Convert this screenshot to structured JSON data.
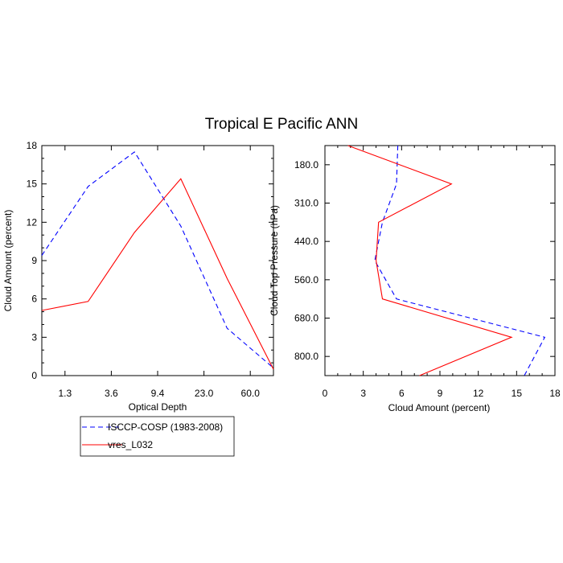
{
  "title": "Tropical E Pacific ANN",
  "colors": {
    "obs": "#0000ff",
    "model": "#ff0000",
    "axis": "#000000"
  },
  "legend": {
    "entries": [
      {
        "label": "ISCCP-COSP (1983-2008)",
        "color": "#0000ff",
        "dash": "dashed"
      },
      {
        "label": "vres_L032",
        "color": "#ff0000",
        "dash": "solid"
      }
    ]
  },
  "chart_data": [
    {
      "type": "line",
      "xlabel": "Optical Depth",
      "ylabel": "Cloud Amount (percent)",
      "x_tick_labels": [
        "1.3",
        "3.6",
        "9.4",
        "23.0",
        "60.0"
      ],
      "x_tick_index": [
        0.5,
        1.5,
        2.5,
        3.5,
        4.5
      ],
      "xlim_index": [
        0,
        5
      ],
      "ylim": [
        0,
        18
      ],
      "y_ticks": [
        0,
        3,
        6,
        9,
        12,
        15,
        18
      ],
      "series": [
        {
          "name": "ISCCP-COSP (1983-2008)",
          "x_index": [
            0,
            1,
            2,
            3,
            4,
            5
          ],
          "values": [
            9.4,
            14.8,
            17.5,
            11.7,
            3.7,
            0.6
          ]
        },
        {
          "name": "vres_L032",
          "x_index": [
            0,
            1,
            2,
            3,
            4,
            5
          ],
          "values": [
            5.1,
            5.8,
            11.2,
            15.4,
            7.6,
            0.5
          ]
        }
      ]
    },
    {
      "type": "line",
      "xlabel": "Cloud Amount (percent)",
      "ylabel": "Cloud Top Pressure (hPa)",
      "xlim": [
        0,
        18
      ],
      "x_ticks": [
        0,
        3,
        6,
        9,
        12,
        15,
        18
      ],
      "y_tick_labels": [
        "180.0",
        "310.0",
        "440.0",
        "560.0",
        "680.0",
        "800.0"
      ],
      "y_tick_index": [
        0.5,
        1.5,
        2.5,
        3.5,
        4.5,
        5.5
      ],
      "ylim_index": [
        0,
        6
      ],
      "series": [
        {
          "name": "ISCCP-COSP (1983-2008)",
          "y_index": [
            0,
            1,
            2,
            3,
            4,
            5,
            6
          ],
          "values": [
            5.7,
            5.6,
            4.5,
            3.9,
            5.6,
            17.2,
            15.6
          ]
        },
        {
          "name": "vres_L032",
          "y_index": [
            0,
            1,
            2,
            3,
            4,
            5,
            6
          ],
          "values": [
            1.8,
            9.9,
            4.2,
            4.0,
            4.5,
            14.6,
            7.4
          ]
        }
      ]
    }
  ]
}
